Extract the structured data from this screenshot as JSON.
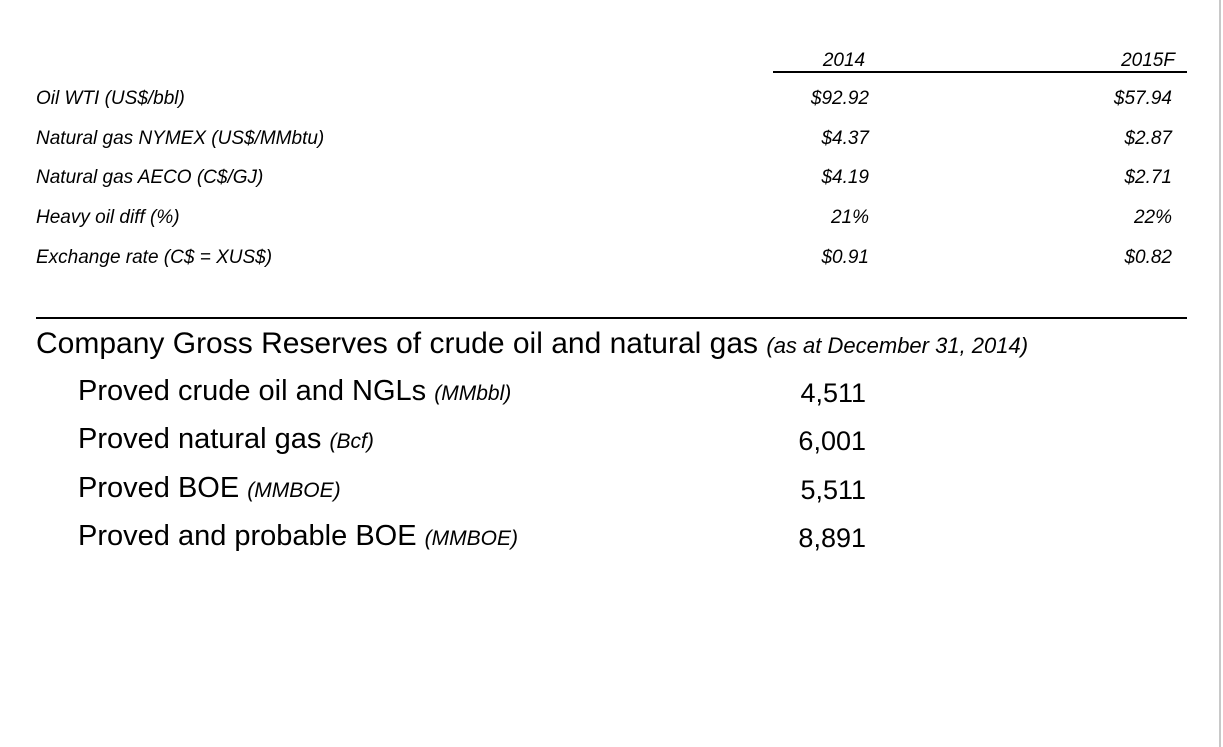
{
  "prices": {
    "columns": [
      "2014",
      "2015F"
    ],
    "rows": [
      {
        "label": "Oil WTI (US$/bbl)",
        "values": [
          "$92.92",
          "$57.94"
        ]
      },
      {
        "label": "Natural gas NYMEX (US$/MMbtu)",
        "values": [
          "$4.37",
          "$2.87"
        ]
      },
      {
        "label": "Natural gas AECO (C$/GJ)",
        "values": [
          "$4.19",
          "$2.71"
        ]
      },
      {
        "label": "Heavy oil diff (%)",
        "values": [
          "21%",
          "22%"
        ]
      },
      {
        "label": "Exchange rate (C$ = XUS$)",
        "values": [
          "$0.91",
          "$0.82"
        ]
      }
    ]
  },
  "reserves": {
    "title": "Company Gross Reserves of crude oil and natural gas",
    "note": "(as at December 31, 2014)",
    "rows": [
      {
        "label": "Proved crude oil and NGLs",
        "unit": "(MMbbl)",
        "value": "4,511"
      },
      {
        "label": "Proved natural gas",
        "unit": "(Bcf)",
        "value": "6,001"
      },
      {
        "label": "Proved BOE",
        "unit": "(MMBOE)",
        "value": "5,511"
      },
      {
        "label": "Proved and probable BOE",
        "unit": "(MMBOE)",
        "value": "8,891"
      }
    ]
  }
}
